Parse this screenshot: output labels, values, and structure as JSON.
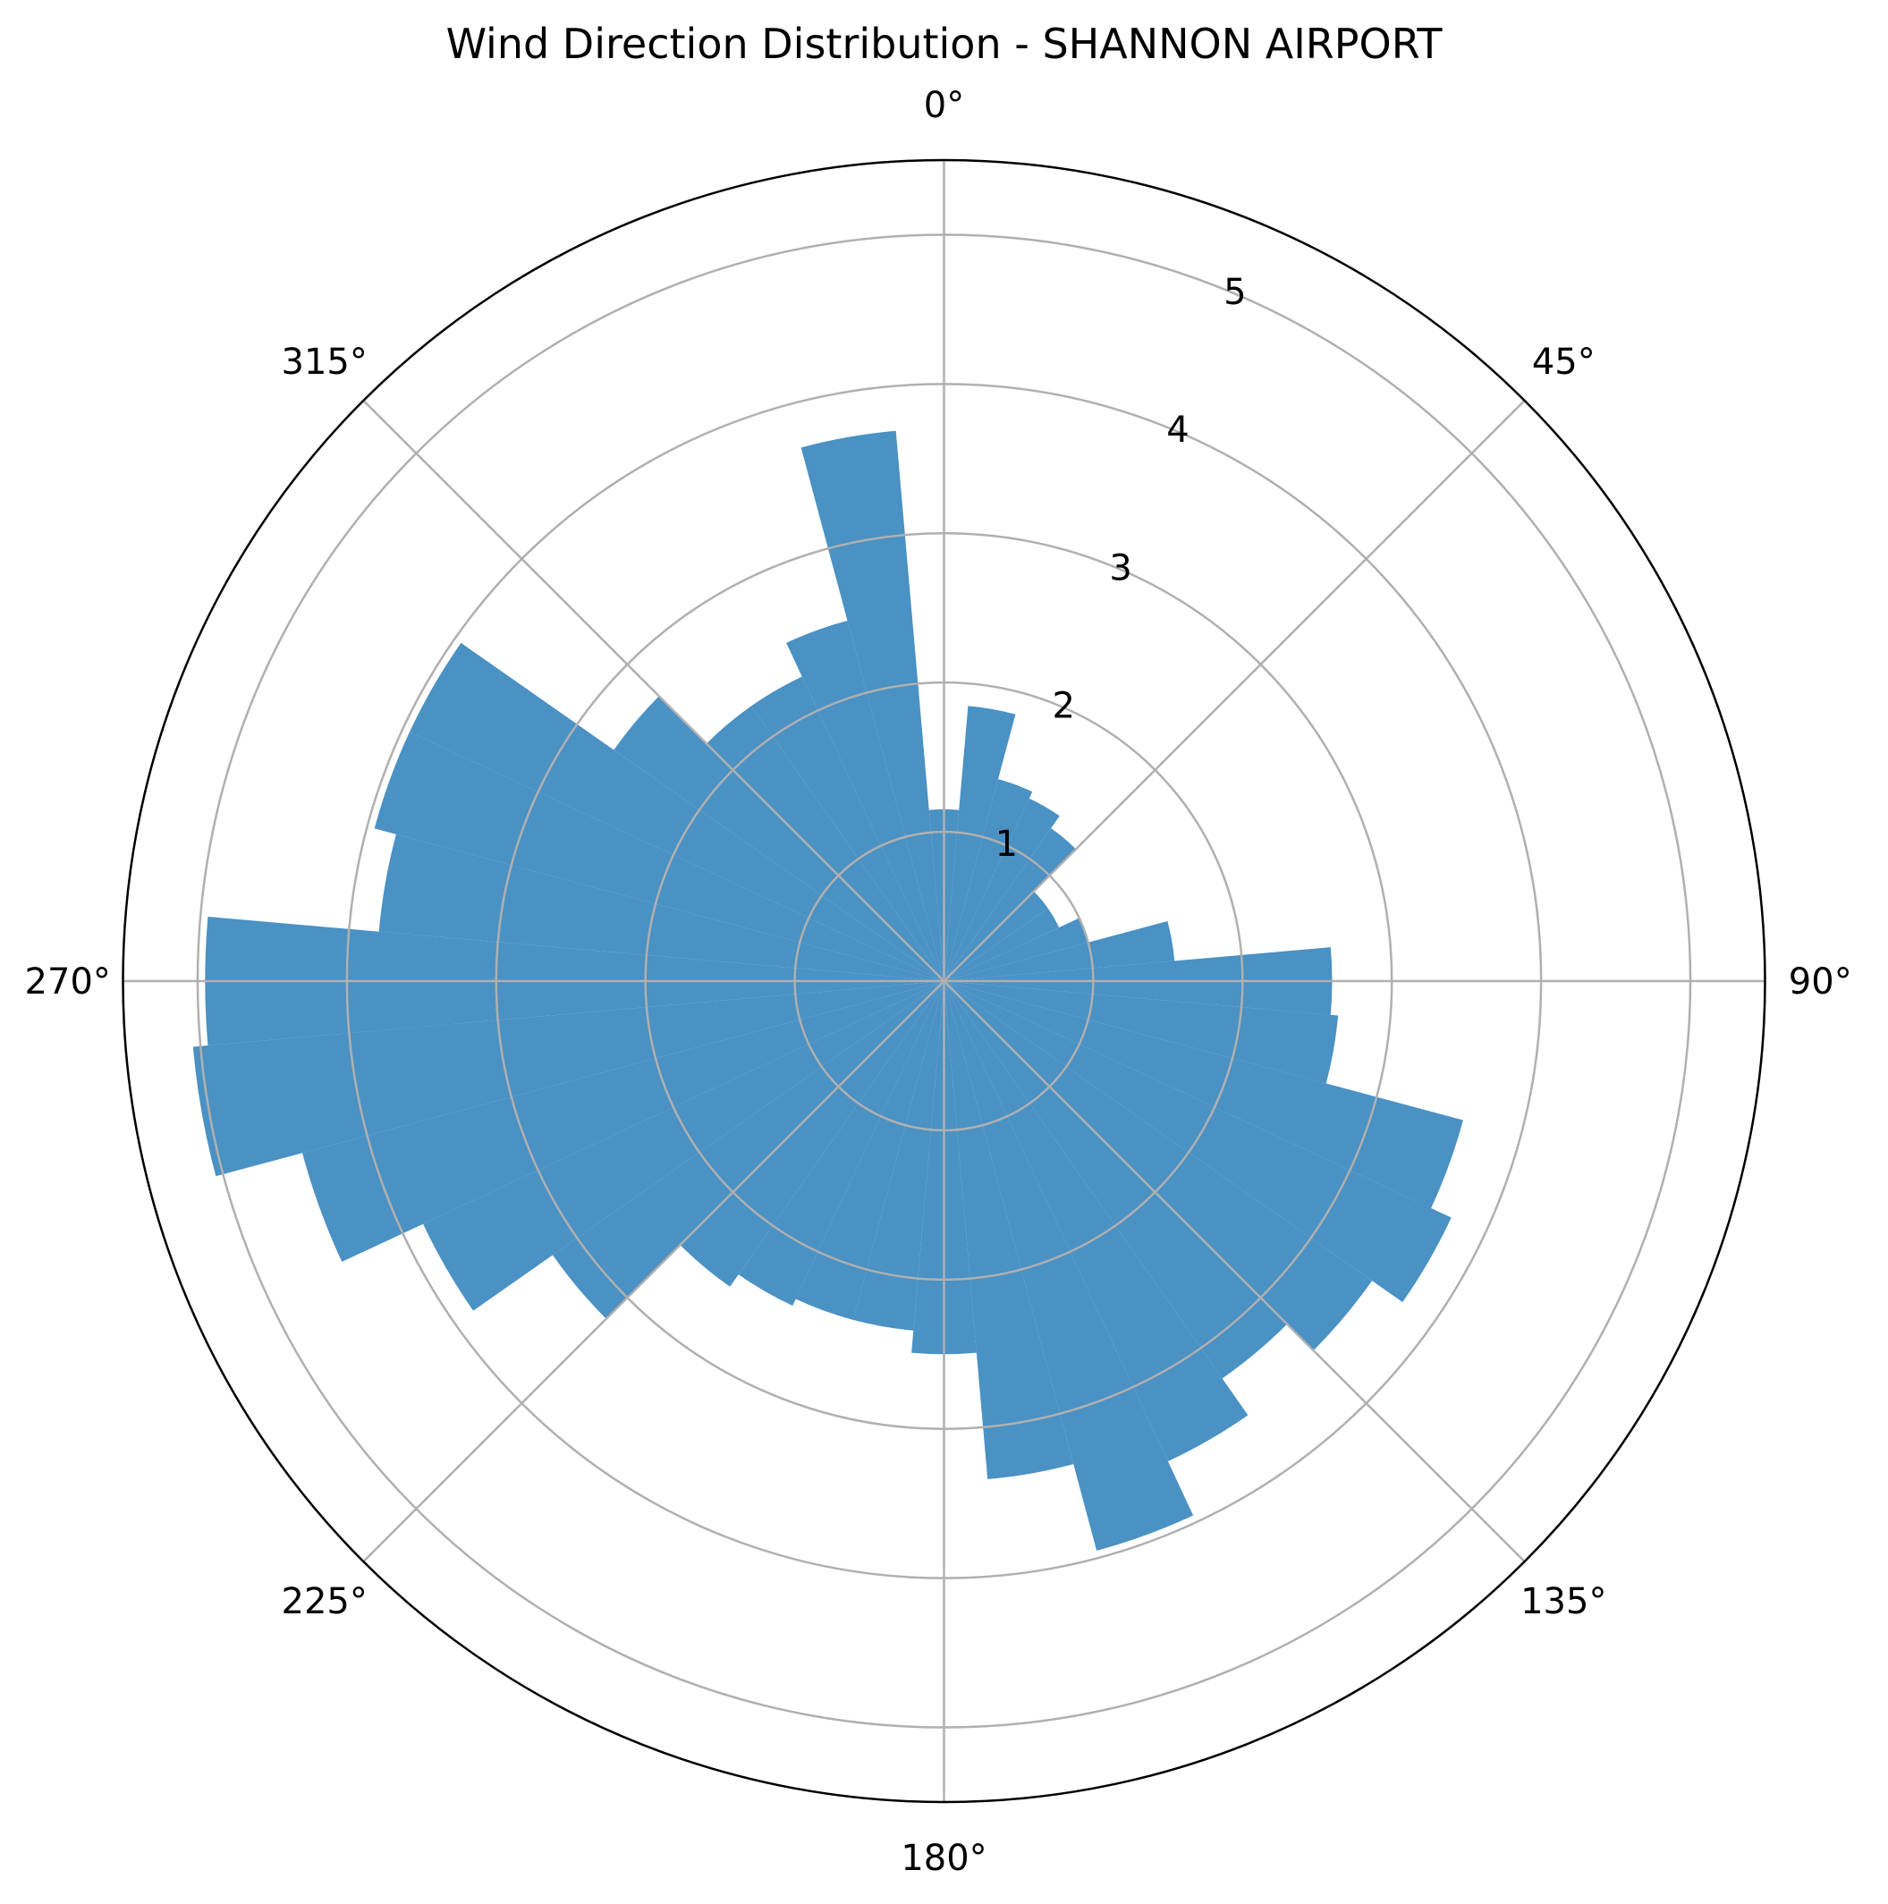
{
  "chart_data": {
    "type": "bar",
    "subtype": "polar-wind-rose",
    "title": "Wind Direction Distribution - SHANNON AIRPORT",
    "xlabel": "",
    "ylabel": "",
    "bar_color": "#4a91c4",
    "grid": true,
    "grid_color": "#b0b0b0",
    "theta_direction": "clockwise",
    "theta_zero": "N",
    "theta_ticks": [
      "0°",
      "45°",
      "90°",
      "135°",
      "180°",
      "225°",
      "270°",
      "315°"
    ],
    "r_ticks": [
      "1",
      "2",
      "3",
      "4",
      "5"
    ],
    "r_tick_values": [
      1,
      2,
      3,
      4,
      5
    ],
    "r_grid_values": [
      1,
      2,
      3,
      4,
      5,
      6,
      7
    ],
    "ylim": [
      0,
      5.5
    ],
    "bin_width_deg": 10,
    "directions": [
      0,
      10,
      20,
      30,
      40,
      50,
      60,
      70,
      80,
      90,
      100,
      110,
      120,
      130,
      140,
      150,
      160,
      170,
      180,
      190,
      200,
      210,
      220,
      230,
      240,
      250,
      260,
      270,
      280,
      290,
      300,
      310,
      320,
      330,
      340,
      350
    ],
    "values": [
      1.15,
      1.85,
      1.4,
      1.35,
      1.25,
      0.85,
      0.85,
      1.0,
      1.55,
      2.6,
      2.65,
      3.6,
      3.75,
      3.5,
      3.25,
      3.55,
      3.95,
      3.35,
      2.5,
      2.35,
      2.35,
      2.4,
      2.5,
      3.2,
      3.85,
      4.45,
      5.05,
      4.95,
      3.8,
      3.95,
      3.95,
      2.7,
      2.25,
      2.25,
      2.5,
      3.7
    ]
  }
}
